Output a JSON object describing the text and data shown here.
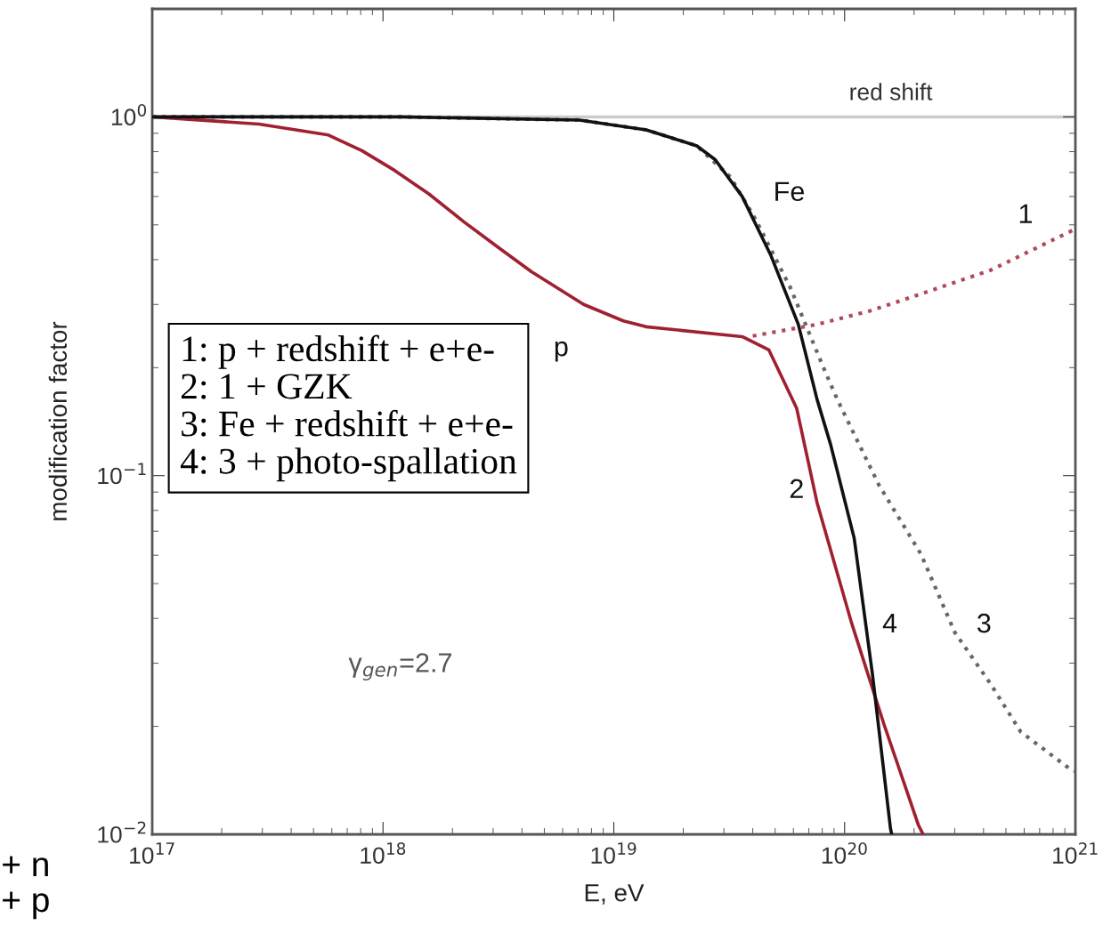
{
  "chart_data": {
    "type": "line",
    "xlabel": "E, eV",
    "ylabel": "modification factor",
    "log": "xy",
    "xlim": [
      1e+17,
      1e+21
    ],
    "ylim": [
      0.01,
      2.0
    ],
    "xticks": [
      {
        "value": 1e+17,
        "label": "10$^{17}$"
      },
      {
        "value": 1e+18,
        "label": "10$^{18}$"
      },
      {
        "value": 1e+19,
        "label": "10$^{19}$"
      },
      {
        "value": 1e+20,
        "label": "10$^{20}$"
      },
      {
        "value": 1e+21,
        "label": "10$^{21}$"
      }
    ],
    "yticks": [
      {
        "value": 0.01,
        "label": "10$^{−2}$"
      },
      {
        "value": 0.1,
        "label": "10$^{−1}$"
      },
      {
        "value": 1,
        "label": "10$^{0}$"
      }
    ],
    "grid": false,
    "marker": "none",
    "series": [
      {
        "color": "#b04a5a",
        "line_style": "dotted",
        "x": [
          4e+19,
          7.6e+19,
          1.29e+20,
          2.14e+20,
          4.3e+20,
          1e+21
        ],
        "values": [
          0.245,
          0.264,
          0.288,
          0.321,
          0.374,
          0.487
        ]
      },
      {
        "color": "#a02030",
        "line_style": "solid",
        "x": [
          1e+17,
          2.9e+17,
          5.8e+17,
          8.1e+17,
          1.12e+18,
          1.58e+18,
          2.24e+18,
          3.2e+18,
          4.4e+18,
          7.4e+18,
          1.1e+19,
          1.38e+19,
          3.6e+19,
          4.7e+19,
          6.2e+19,
          7.6e+19,
          1.07e+20,
          1.48e+20,
          2.09e+20,
          2.19e+20
        ],
        "values": [
          1.0,
          0.955,
          0.89,
          0.805,
          0.71,
          0.61,
          0.51,
          0.43,
          0.37,
          0.3,
          0.27,
          0.26,
          0.244,
          0.224,
          0.154,
          0.084,
          0.039,
          0.0203,
          0.0106,
          0.01
        ]
      },
      {
        "color": "#666666",
        "line_style": "dotted",
        "x": [
          1e+17,
          1.2e+18,
          7.1e+18,
          1.38e+19,
          2.29e+19,
          3.2e+19,
          4.1e+19,
          5.8e+19,
          8.1e+19,
          9.3e+19,
          1.41e+20,
          2.14e+20,
          3e+20,
          4.3e+20,
          5.8e+20,
          9.5e+20,
          1e+21
        ],
        "values": [
          1.0,
          1.0,
          0.98,
          0.92,
          0.83,
          0.68,
          0.52,
          0.336,
          0.2,
          0.163,
          0.094,
          0.0605,
          0.0366,
          0.0262,
          0.0193,
          0.0152,
          0.015
        ]
      },
      {
        "color": "#111111",
        "line_style": "solid",
        "x": [
          1e+17,
          1.2e+18,
          7.1e+18,
          1.38e+19,
          1.82e+19,
          2.29e+19,
          2.75e+19,
          3.6e+19,
          4.8e+19,
          6.3e+19,
          7.6e+19,
          8.7e+19,
          1.1e+20,
          1.32e+20,
          1.58e+20,
          1.6e+20
        ],
        "values": [
          1.0,
          1.0,
          0.98,
          0.92,
          0.87,
          0.83,
          0.76,
          0.6,
          0.41,
          0.264,
          0.163,
          0.122,
          0.067,
          0.028,
          0.0104,
          0.01
        ]
      }
    ],
    "ref_lines": [
      {
        "axis": "y",
        "value": 1,
        "label": "red shift",
        "color": "#cccccc",
        "line_style": "solid"
      }
    ],
    "annotations": [
      "Fe",
      "1",
      "p",
      "2",
      "4",
      "3",
      "γ$_{gen}$=2.7",
      "1: p + redshift + e+e-\n2: 1 + GZK\n3: Fe + redshift + e+e-\n4: 3 + photo-spallation",
      "+ n",
      "+ p"
    ]
  }
}
